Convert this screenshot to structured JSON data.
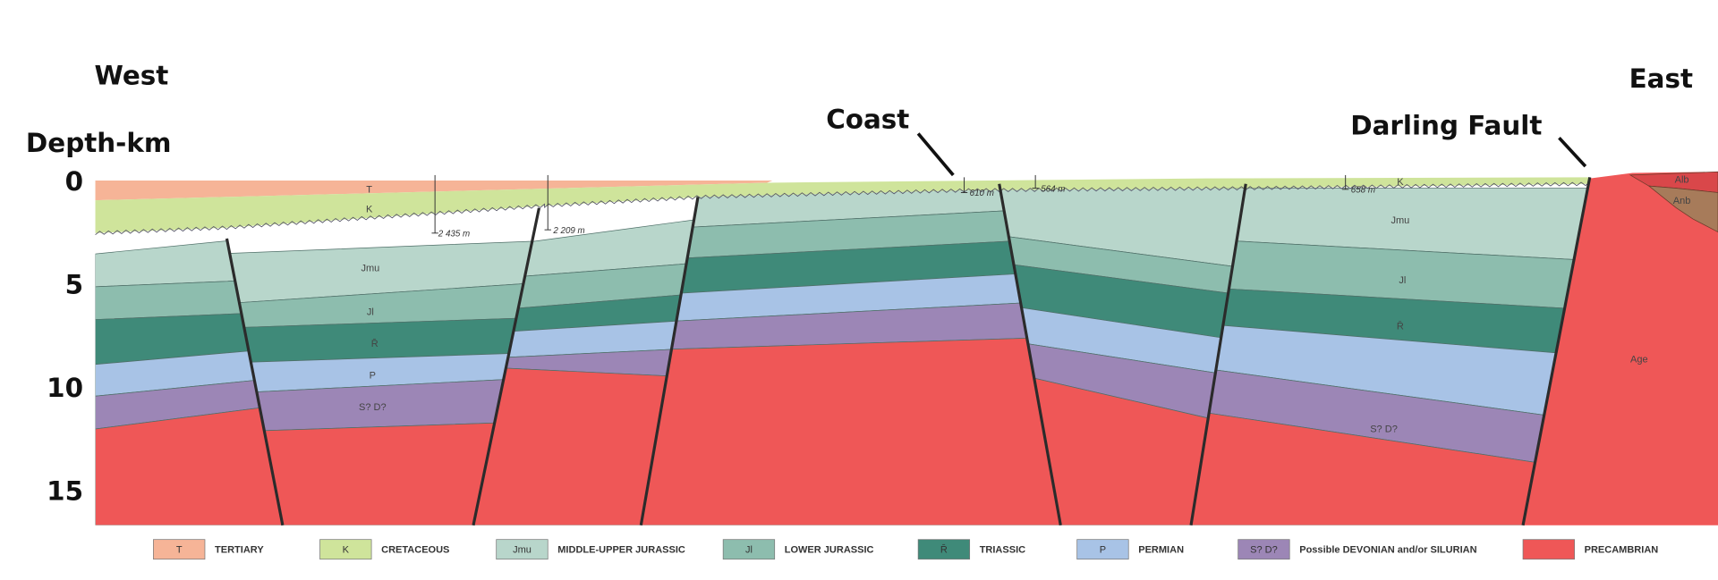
{
  "labels": {
    "west": "West",
    "east": "East",
    "coast": "Coast",
    "darling_fault": "Darling Fault"
  },
  "depth_axis": {
    "label": "Depth-km",
    "ticks": [
      0,
      5,
      10,
      15
    ]
  },
  "wells": [
    "2 435 m",
    "2 209 m",
    "610 m",
    "564 m",
    "658 m"
  ],
  "section_labels": [
    "T",
    "K",
    "Jmu",
    "Jl",
    "R̄",
    "P",
    "S? D?",
    "K",
    "Jmu",
    "Jl",
    "R̄",
    "S? D?",
    "Age",
    "Alb",
    "Anb"
  ],
  "legend": [
    {
      "symbol": "T",
      "name": "TERTIARY"
    },
    {
      "symbol": "K",
      "name": "CRETACEOUS"
    },
    {
      "symbol": "Jmu",
      "name": "MIDDLE-UPPER JURASSIC"
    },
    {
      "symbol": "Jl",
      "name": "LOWER JURASSIC"
    },
    {
      "symbol": "R̄",
      "name": "TRIASSIC"
    },
    {
      "symbol": "P",
      "name": "PERMIAN"
    },
    {
      "symbol": "S? D?",
      "name": "Possible DEVONIAN and/or SILURIAN"
    },
    {
      "name": "PRECAMBRIAN"
    }
  ]
}
